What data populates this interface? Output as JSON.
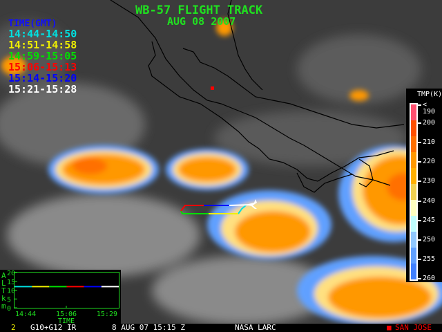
{
  "title": "WB-57 FLIGHT TRACK",
  "date": "AUG 08 2007",
  "legend": {
    "header": "TIME(GMT)",
    "items": [
      {
        "label": "14:44-14:50",
        "color": "#00e0e0"
      },
      {
        "label": "14:51-14:58",
        "color": "#f0f000"
      },
      {
        "label": "14:59-15:05",
        "color": "#00e000"
      },
      {
        "label": "15:06-15:13",
        "color": "#ff0000"
      },
      {
        "label": "15:14-15:20",
        "color": "#0000ff"
      },
      {
        "label": "15:21-15:28",
        "color": "#ffffff"
      }
    ]
  },
  "colorbar": {
    "title": "TMP(K)",
    "labels": [
      "< 190",
      "200",
      "210",
      "220",
      "230",
      "240",
      "245",
      "250",
      "255",
      "260"
    ],
    "colors": [
      "#ff5070",
      "#ff5000",
      "#ff7000",
      "#ff9800",
      "#ffb000",
      "#f0d050",
      "#ffffc0",
      "#c0ffff",
      "#90c8ff",
      "#60a0ff",
      "#4080ff"
    ]
  },
  "altitude_plot": {
    "y_axis_label": [
      "A",
      "L",
      "T",
      "k",
      "m"
    ],
    "y_ticks": [
      "20",
      "15",
      "10",
      "5",
      "0"
    ],
    "x_ticks": [
      "14:44",
      "15:06",
      "15:29"
    ],
    "x_label": "TIME",
    "altitude_km": 12
  },
  "footer": {
    "frame": "2",
    "satellite": "G10+G12 IR",
    "timestamp": "8 AUG 07 15:15 Z",
    "source": "NASA LARC",
    "marker_label": "SAN JOSE",
    "marker_color": "#ff0000"
  }
}
